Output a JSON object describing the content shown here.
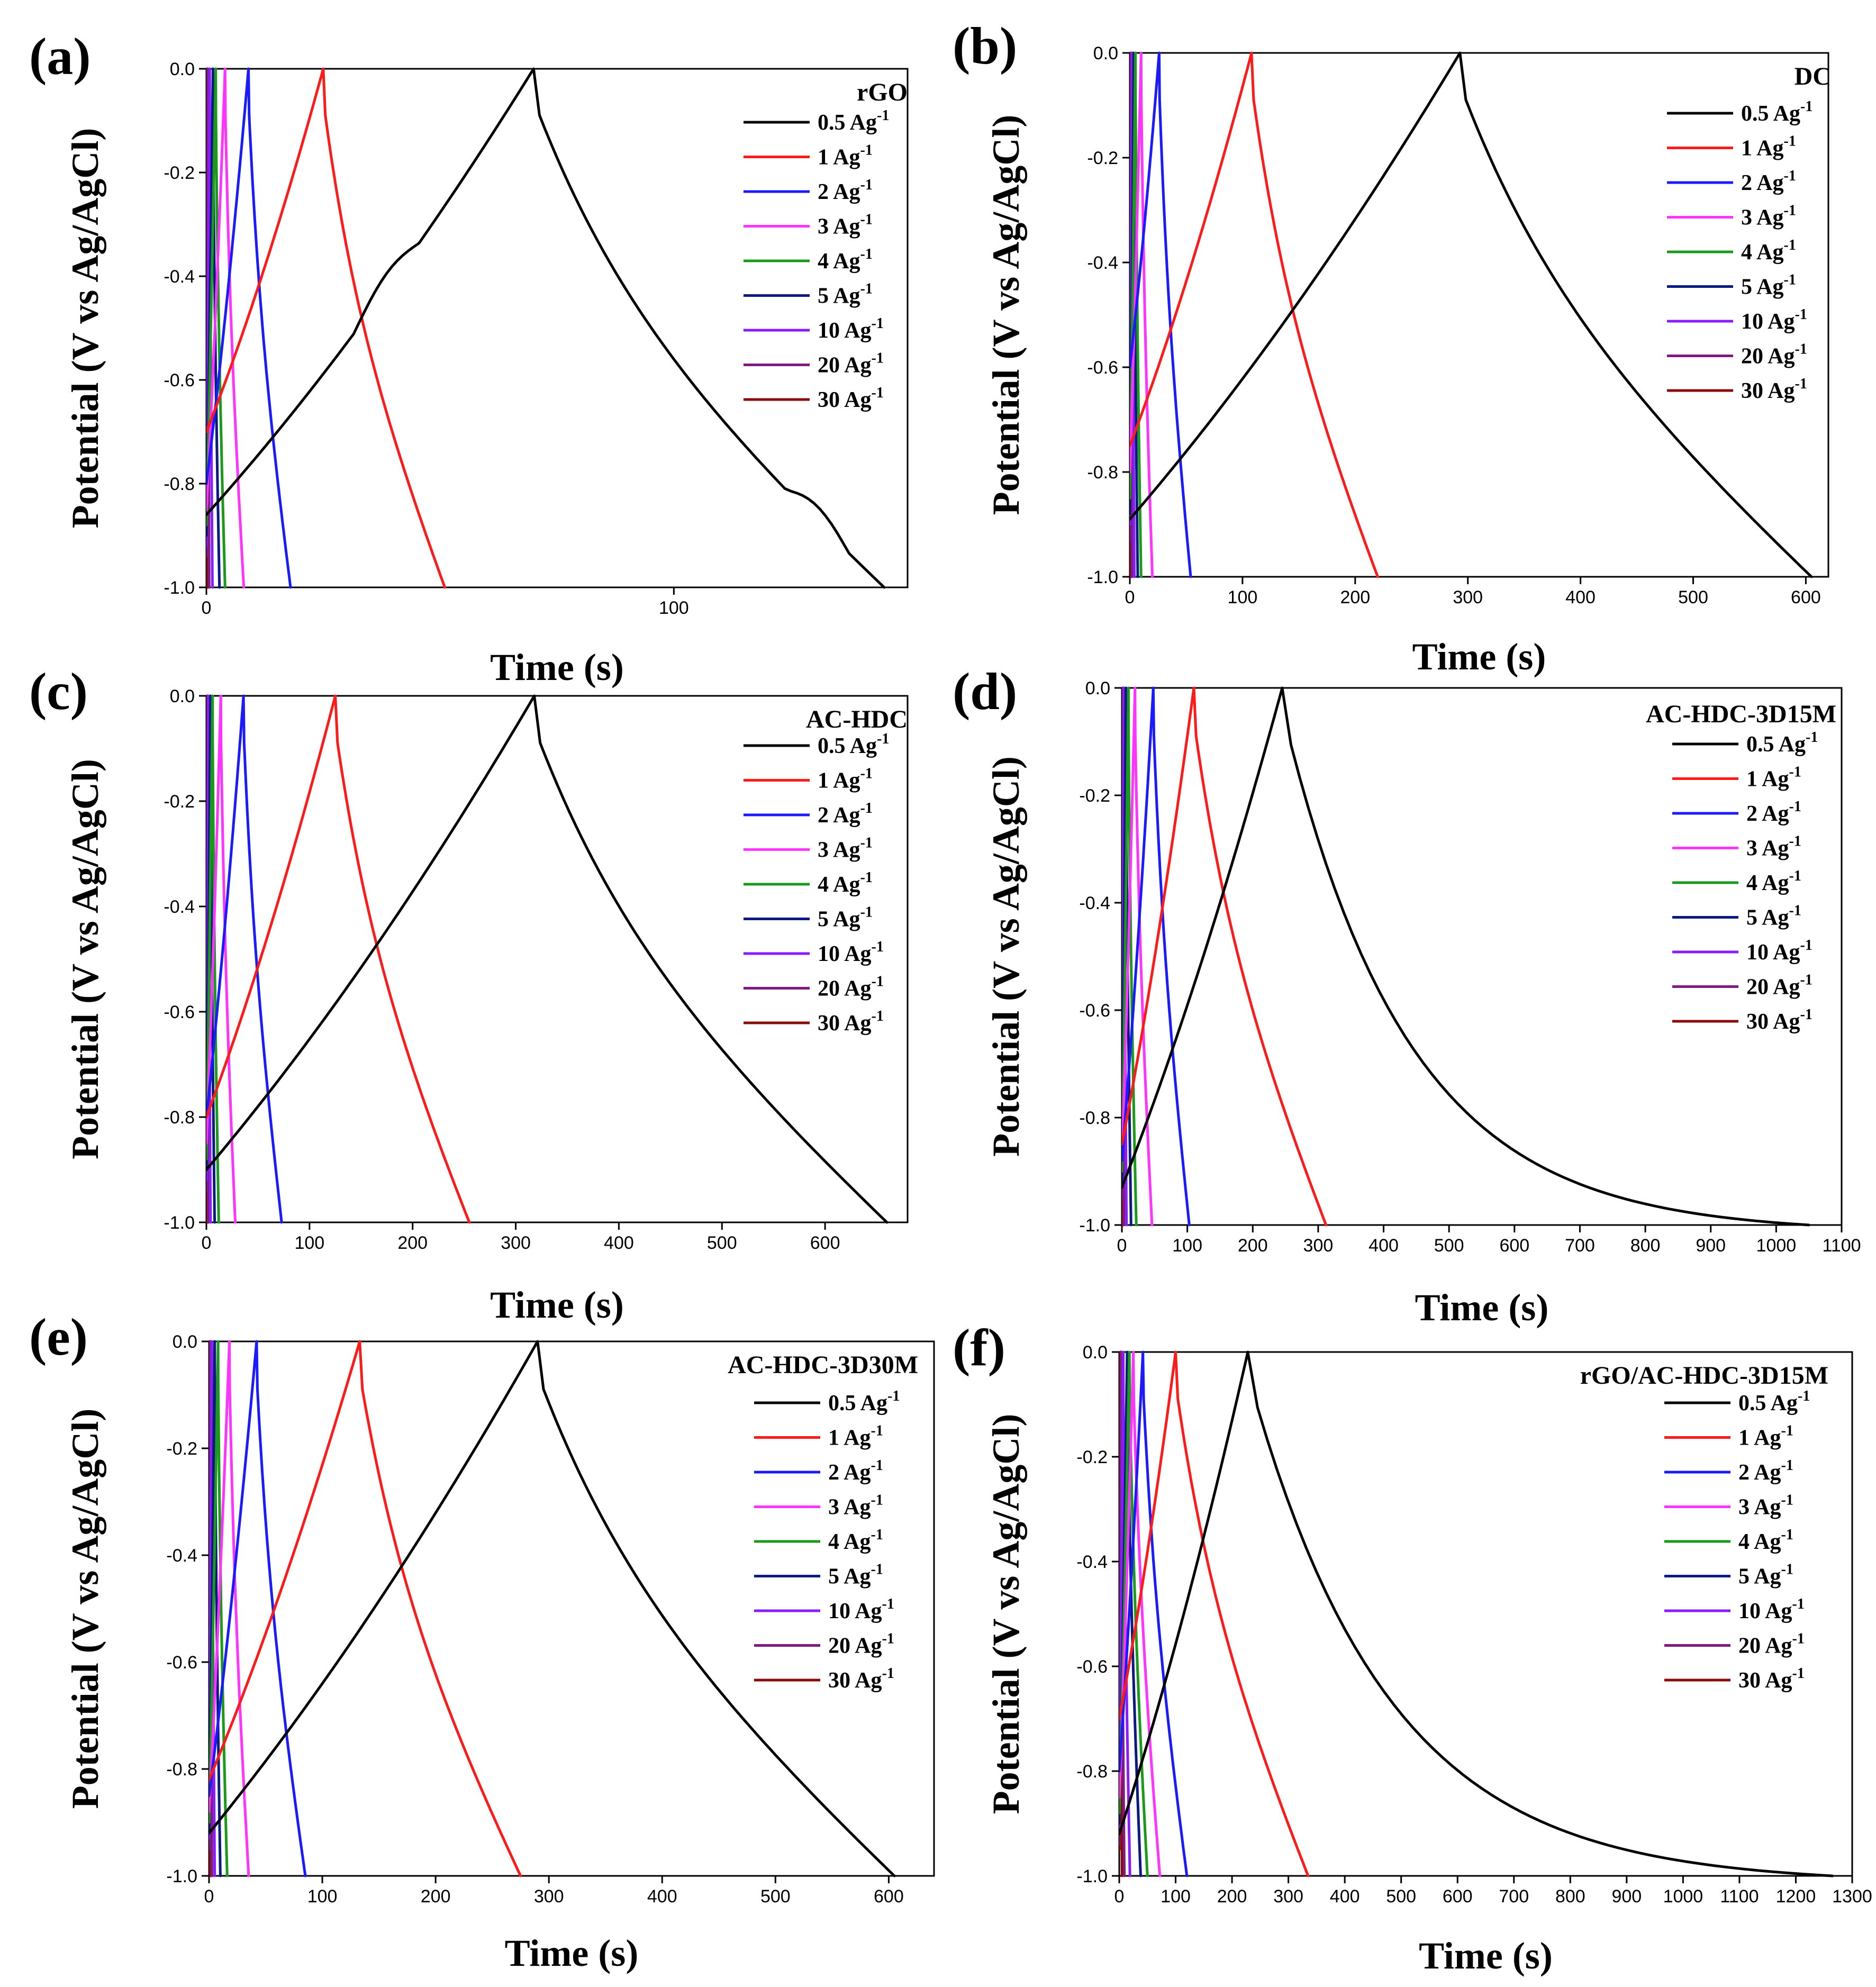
{
  "colors": {
    "0.5 Ag-1": "#000000",
    "1 Ag-1": "#ff1a1a",
    "2 Ag-1": "#1a1aff",
    "3 Ag-1": "#ff33ff",
    "4 Ag-1": "#1a991a",
    "5 Ag-1": "#0a1a80",
    "10 Ag-1": "#8a1aff",
    "20 Ag-1": "#801a80",
    "30 Ag-1": "#8a0a0a"
  },
  "chart_data": [
    {
      "panel": "(a)",
      "type": "line",
      "title": "rGO",
      "xlabel": "Time (s)",
      "ylabel": "Potential (V vs Ag/AgCl)",
      "xlim": [
        0,
        150
      ],
      "ylim": [
        -1.0,
        0.0
      ],
      "xticks": [
        "0",
        "100"
      ],
      "yticks": [
        "0.0",
        "-0.2",
        "-0.4",
        "-0.6",
        "-0.8",
        "-1.0"
      ],
      "legend": [
        "0.5 Ag",
        "1 Ag",
        "2 Ag",
        "3 Ag",
        "4 Ag",
        "5 Ag",
        "10 Ag",
        "20 Ag",
        "30 Ag"
      ],
      "legend_sup": "-1",
      "series": [
        {
          "name": "0.5 Ag-1",
          "charge_start_v": -0.86,
          "charge_end_t": 70,
          "discharge_end_t": 145,
          "bump": true
        },
        {
          "name": "1 Ag-1",
          "charge_start_v": -0.7,
          "charge_end_t": 25,
          "discharge_end_t": 51
        },
        {
          "name": "2 Ag-1",
          "charge_start_v": -0.8,
          "charge_end_t": 9,
          "discharge_end_t": 18
        },
        {
          "name": "3 Ag-1",
          "charge_start_v": -0.85,
          "charge_end_t": 4,
          "discharge_end_t": 8
        },
        {
          "name": "4 Ag-1",
          "charge_start_v": -0.88,
          "charge_end_t": 2,
          "discharge_end_t": 4
        },
        {
          "name": "5 Ag-1",
          "charge_start_v": -0.9,
          "charge_end_t": 1.4,
          "discharge_end_t": 2.8
        },
        {
          "name": "10 Ag-1",
          "charge_start_v": -0.92,
          "charge_end_t": 0.7,
          "discharge_end_t": 1.3
        },
        {
          "name": "20 Ag-1",
          "charge_start_v": -0.94,
          "charge_end_t": 0.3,
          "discharge_end_t": 0.6
        },
        {
          "name": "30 Ag-1",
          "charge_start_v": -0.95,
          "charge_end_t": 0.15,
          "discharge_end_t": 0.3
        }
      ]
    },
    {
      "panel": "(b)",
      "type": "line",
      "title": "DC",
      "xlabel": "Time (s)",
      "ylabel": "Potential (V vs Ag/AgCl)",
      "xlim": [
        0,
        620
      ],
      "ylim": [
        -1.0,
        0.0
      ],
      "xticks": [
        "0",
        "100",
        "200",
        "300",
        "400",
        "500",
        "600"
      ],
      "yticks": [
        "0.0",
        "-0.2",
        "-0.4",
        "-0.6",
        "-0.8",
        "-1.0"
      ],
      "legend": [
        "0.5 Ag",
        "1 Ag",
        "2 Ag",
        "3 Ag",
        "4 Ag",
        "5 Ag",
        "10 Ag",
        "20 Ag",
        "30 Ag"
      ],
      "legend_sup": "-1",
      "series": [
        {
          "name": "0.5 Ag-1",
          "charge_start_v": -0.89,
          "charge_end_t": 293,
          "discharge_end_t": 605
        },
        {
          "name": "1 Ag-1",
          "charge_start_v": -0.75,
          "charge_end_t": 108,
          "discharge_end_t": 220
        },
        {
          "name": "2 Ag-1",
          "charge_start_v": -0.6,
          "charge_end_t": 26,
          "discharge_end_t": 54
        },
        {
          "name": "3 Ag-1",
          "charge_start_v": -0.8,
          "charge_end_t": 10,
          "discharge_end_t": 20
        },
        {
          "name": "4 Ag-1",
          "charge_start_v": -0.85,
          "charge_end_t": 5,
          "discharge_end_t": 10
        },
        {
          "name": "5 Ag-1",
          "charge_start_v": -0.88,
          "charge_end_t": 3.5,
          "discharge_end_t": 7
        },
        {
          "name": "10 Ag-1",
          "charge_start_v": -0.9,
          "charge_end_t": 2,
          "discharge_end_t": 4
        },
        {
          "name": "20 Ag-1",
          "charge_start_v": -0.93,
          "charge_end_t": 1,
          "discharge_end_t": 2
        },
        {
          "name": "30 Ag-1",
          "charge_start_v": -0.95,
          "charge_end_t": 0.5,
          "discharge_end_t": 1
        }
      ]
    },
    {
      "panel": "(c)",
      "type": "line",
      "title": "AC-HDC",
      "xlabel": "Time (s)",
      "ylabel": "Potential (V vs Ag/AgCl)",
      "xlim": [
        0,
        680
      ],
      "ylim": [
        -1.0,
        0.0
      ],
      "xticks": [
        "0",
        "100",
        "200",
        "300",
        "400",
        "500",
        "600"
      ],
      "yticks": [
        "0.0",
        "-0.2",
        "-0.4",
        "-0.6",
        "-0.8",
        "-1.0"
      ],
      "legend": [
        "0.5 Ag",
        "1 Ag",
        "2 Ag",
        "3 Ag",
        "4 Ag",
        "5 Ag",
        "10 Ag",
        "20 Ag",
        "30 Ag"
      ],
      "legend_sup": "-1",
      "series": [
        {
          "name": "0.5 Ag-1",
          "charge_start_v": -0.9,
          "charge_end_t": 318,
          "discharge_end_t": 660
        },
        {
          "name": "1 Ag-1",
          "charge_start_v": -0.8,
          "charge_end_t": 125,
          "discharge_end_t": 255
        },
        {
          "name": "2 Ag-1",
          "charge_start_v": -0.8,
          "charge_end_t": 36,
          "discharge_end_t": 73
        },
        {
          "name": "3 Ag-1",
          "charge_start_v": -0.85,
          "charge_end_t": 14,
          "discharge_end_t": 28
        },
        {
          "name": "4 Ag-1",
          "charge_start_v": -0.88,
          "charge_end_t": 6,
          "discharge_end_t": 12
        },
        {
          "name": "5 Ag-1",
          "charge_start_v": -0.9,
          "charge_end_t": 4,
          "discharge_end_t": 8
        },
        {
          "name": "10 Ag-1",
          "charge_start_v": -0.92,
          "charge_end_t": 2,
          "discharge_end_t": 4
        },
        {
          "name": "20 Ag-1",
          "charge_start_v": -0.94,
          "charge_end_t": 1,
          "discharge_end_t": 2
        },
        {
          "name": "30 Ag-1",
          "charge_start_v": -0.95,
          "charge_end_t": 0.5,
          "discharge_end_t": 1
        }
      ]
    },
    {
      "panel": "(d)",
      "type": "line",
      "title": "AC-HDC-3D15M",
      "xlabel": "Time (s)",
      "ylabel": "Potential (V vs Ag/AgCl)",
      "xlim": [
        0,
        1100
      ],
      "ylim": [
        -1.0,
        0.0
      ],
      "xticks": [
        "0",
        "100",
        "200",
        "300",
        "400",
        "500",
        "600",
        "700",
        "800",
        "900",
        "1000",
        "1100"
      ],
      "yticks": [
        "0.0",
        "-0.2",
        "-0.4",
        "-0.6",
        "-0.8",
        "-1.0"
      ],
      "legend": [
        "0.5 Ag",
        "1 Ag",
        "2 Ag",
        "3 Ag",
        "4 Ag",
        "5 Ag",
        "10 Ag",
        "20 Ag",
        "30 Ag"
      ],
      "legend_sup": "-1",
      "series": [
        {
          "name": "0.5 Ag-1",
          "charge_start_v": -0.93,
          "charge_end_t": 245,
          "discharge_end_t": 1050,
          "decay": true
        },
        {
          "name": "1 Ag-1",
          "charge_start_v": -0.85,
          "charge_end_t": 110,
          "discharge_end_t": 312
        },
        {
          "name": "2 Ag-1",
          "charge_start_v": -0.88,
          "charge_end_t": 48,
          "discharge_end_t": 103
        },
        {
          "name": "3 Ag-1",
          "charge_start_v": -0.88,
          "charge_end_t": 20,
          "discharge_end_t": 46
        },
        {
          "name": "4 Ag-1",
          "charge_start_v": -0.9,
          "charge_end_t": 10,
          "discharge_end_t": 22
        },
        {
          "name": "5 Ag-1",
          "charge_start_v": -0.92,
          "charge_end_t": 6,
          "discharge_end_t": 14
        },
        {
          "name": "10 Ag-1",
          "charge_start_v": -0.93,
          "charge_end_t": 3,
          "discharge_end_t": 7
        },
        {
          "name": "20 Ag-1",
          "charge_start_v": -0.95,
          "charge_end_t": 1.5,
          "discharge_end_t": 3
        },
        {
          "name": "30 Ag-1",
          "charge_start_v": -0.96,
          "charge_end_t": 0.8,
          "discharge_end_t": 1.6
        }
      ]
    },
    {
      "panel": "(e)",
      "type": "line",
      "title": "AC-HDC-3D30M",
      "xlabel": "Time (s)",
      "ylabel": "Potential (V vs Ag/AgCl)",
      "xlim": [
        0,
        640
      ],
      "ylim": [
        -1.0,
        0.0
      ],
      "xticks": [
        "0",
        "100",
        "200",
        "300",
        "400",
        "500",
        "600"
      ],
      "yticks": [
        "0.0",
        "-0.2",
        "-0.4",
        "-0.6",
        "-0.8",
        "-1.0"
      ],
      "legend": [
        "0.5 Ag",
        "1 Ag",
        "2 Ag",
        "3 Ag",
        "4 Ag",
        "5 Ag",
        "10 Ag",
        "20 Ag",
        "30 Ag"
      ],
      "legend_sup": "-1",
      "series": [
        {
          "name": "0.5 Ag-1",
          "charge_start_v": -0.92,
          "charge_end_t": 290,
          "discharge_end_t": 605
        },
        {
          "name": "1 Ag-1",
          "charge_start_v": -0.82,
          "charge_end_t": 133,
          "discharge_end_t": 275
        },
        {
          "name": "2 Ag-1",
          "charge_start_v": -0.85,
          "charge_end_t": 42,
          "discharge_end_t": 85
        },
        {
          "name": "3 Ag-1",
          "charge_start_v": -0.88,
          "charge_end_t": 18,
          "discharge_end_t": 35
        },
        {
          "name": "4 Ag-1",
          "charge_start_v": -0.9,
          "charge_end_t": 8,
          "discharge_end_t": 16
        },
        {
          "name": "5 Ag-1",
          "charge_start_v": -0.92,
          "charge_end_t": 5,
          "discharge_end_t": 10
        },
        {
          "name": "10 Ag-1",
          "charge_start_v": -0.93,
          "charge_end_t": 2.5,
          "discharge_end_t": 5
        },
        {
          "name": "20 Ag-1",
          "charge_start_v": -0.95,
          "charge_end_t": 1.2,
          "discharge_end_t": 2.5
        },
        {
          "name": "30 Ag-1",
          "charge_start_v": -0.96,
          "charge_end_t": 0.6,
          "discharge_end_t": 1.2
        }
      ]
    },
    {
      "panel": "(f)",
      "type": "line",
      "title": "rGO/AC-HDC-3D15M",
      "xlabel": "Time (s)",
      "ylabel": "Potential (V vs Ag/AgCl)",
      "xlim": [
        0,
        1300
      ],
      "ylim": [
        -1.0,
        0.0
      ],
      "xticks": [
        "0",
        "100",
        "200",
        "300",
        "400",
        "500",
        "600",
        "700",
        "800",
        "900",
        "1000",
        "1100",
        "1200",
        "1300"
      ],
      "yticks": [
        "0.0",
        "-0.2",
        "-0.4",
        "-0.6",
        "-0.8",
        "-1.0"
      ],
      "legend": [
        "0.5 Ag",
        "1 Ag",
        "2 Ag",
        "3 Ag",
        "4 Ag",
        "5 Ag",
        "10 Ag",
        "20 Ag",
        "30 Ag"
      ],
      "legend_sup": "-1",
      "series": [
        {
          "name": "0.5 Ag-1",
          "charge_start_v": -0.92,
          "charge_end_t": 228,
          "discharge_end_t": 1265,
          "decay": true
        },
        {
          "name": "1 Ag-1",
          "charge_start_v": -0.7,
          "charge_end_t": 100,
          "discharge_end_t": 335
        },
        {
          "name": "2 Ag-1",
          "charge_start_v": -0.8,
          "charge_end_t": 42,
          "discharge_end_t": 120
        },
        {
          "name": "3 Ag-1",
          "charge_start_v": -0.85,
          "charge_end_t": 25,
          "discharge_end_t": 72
        },
        {
          "name": "4 Ag-1",
          "charge_start_v": -0.88,
          "charge_end_t": 18,
          "discharge_end_t": 50
        },
        {
          "name": "5 Ag-1",
          "charge_start_v": -0.9,
          "charge_end_t": 14,
          "discharge_end_t": 38
        },
        {
          "name": "10 Ag-1",
          "charge_start_v": -0.92,
          "charge_end_t": 7,
          "discharge_end_t": 19
        },
        {
          "name": "20 Ag-1",
          "charge_start_v": -0.94,
          "charge_end_t": 3.5,
          "discharge_end_t": 9
        },
        {
          "name": "30 Ag-1",
          "charge_start_v": -0.95,
          "charge_end_t": 2,
          "discharge_end_t": 5
        }
      ]
    }
  ]
}
